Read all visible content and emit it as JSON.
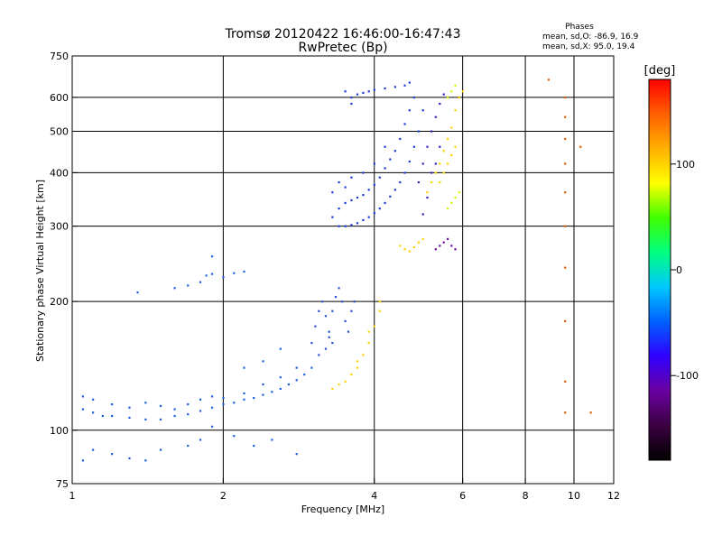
{
  "chart_data": {
    "type": "scatter",
    "title": "Tromsø 20120422 16:46:00-16:47:43",
    "subtitle": "RwPretec (Bp)",
    "xlabel": "Frequency [MHz]",
    "ylabel": "Stationary phase Virtual Height [km]",
    "x_scale": "log",
    "y_scale": "log",
    "xlim": [
      1,
      12
    ],
    "ylim": [
      75,
      750
    ],
    "x_ticks": [
      1,
      2,
      4,
      6,
      8,
      10,
      12
    ],
    "y_ticks": [
      75,
      100,
      200,
      300,
      400,
      500,
      600,
      750
    ],
    "x_gridlines": [
      2,
      4,
      6,
      8,
      10
    ],
    "y_gridlines": [
      100,
      200,
      300,
      400,
      500,
      600
    ],
    "grid": true,
    "stats": {
      "title": "Phases",
      "line1": "mean, sd,O: -86.9, 16.9",
      "line2": "mean, sd,X:  95.0, 19.4"
    },
    "colorbar": {
      "label": "[deg]",
      "range": [
        -180,
        180
      ],
      "ticks": [
        100,
        0,
        -100
      ],
      "colors": [
        "#000000",
        "#3a0040",
        "#6a00a0",
        "#3000ff",
        "#0060ff",
        "#00c8ff",
        "#00ff80",
        "#40ff00",
        "#ffff00",
        "#ffb000",
        "#ff6000",
        "#ff0000"
      ]
    },
    "series": [
      {
        "color": "#1e5fe0",
        "points": [
          [
            1.05,
            112
          ],
          [
            1.1,
            110
          ],
          [
            1.15,
            108
          ],
          [
            1.2,
            108
          ],
          [
            1.3,
            107
          ],
          [
            1.4,
            106
          ],
          [
            1.5,
            106
          ],
          [
            1.6,
            108
          ],
          [
            1.7,
            109
          ],
          [
            1.8,
            111
          ],
          [
            1.9,
            113
          ],
          [
            2.0,
            115
          ],
          [
            2.1,
            116
          ],
          [
            2.2,
            118
          ],
          [
            2.3,
            119
          ],
          [
            2.4,
            121
          ],
          [
            2.5,
            123
          ],
          [
            2.6,
            125
          ],
          [
            2.7,
            128
          ],
          [
            2.8,
            131
          ],
          [
            2.9,
            135
          ],
          [
            3.0,
            140
          ],
          [
            1.05,
            120
          ],
          [
            1.1,
            118
          ],
          [
            1.2,
            115
          ],
          [
            1.3,
            113
          ],
          [
            1.4,
            116
          ],
          [
            1.5,
            114
          ],
          [
            1.6,
            112
          ],
          [
            1.7,
            115
          ],
          [
            1.8,
            118
          ],
          [
            1.9,
            120
          ],
          [
            2.0,
            119
          ],
          [
            2.2,
            122
          ],
          [
            2.4,
            128
          ],
          [
            2.6,
            133
          ],
          [
            2.8,
            140
          ],
          [
            2.6,
            155
          ],
          [
            2.4,
            145
          ],
          [
            2.2,
            140
          ],
          [
            1.35,
            210
          ],
          [
            1.6,
            215
          ],
          [
            1.7,
            218
          ],
          [
            1.8,
            222
          ],
          [
            1.85,
            230
          ],
          [
            1.9,
            232
          ],
          [
            2.0,
            228
          ],
          [
            2.1,
            233
          ],
          [
            2.2,
            235
          ],
          [
            1.9,
            255
          ],
          [
            1.05,
            85
          ],
          [
            1.1,
            90
          ],
          [
            1.2,
            88
          ],
          [
            1.3,
            86
          ],
          [
            1.4,
            85
          ],
          [
            1.5,
            90
          ],
          [
            1.7,
            92
          ],
          [
            1.8,
            95
          ],
          [
            1.9,
            102
          ],
          [
            2.1,
            97
          ],
          [
            2.3,
            92
          ],
          [
            2.5,
            95
          ],
          [
            2.8,
            88
          ]
        ]
      },
      {
        "color": "#2850d8",
        "points": [
          [
            3.0,
            160
          ],
          [
            3.05,
            175
          ],
          [
            3.1,
            190
          ],
          [
            3.15,
            200
          ],
          [
            3.2,
            185
          ],
          [
            3.25,
            170
          ],
          [
            3.3,
            190
          ],
          [
            3.35,
            205
          ],
          [
            3.4,
            215
          ],
          [
            3.45,
            200
          ],
          [
            3.5,
            180
          ],
          [
            3.55,
            170
          ],
          [
            3.6,
            190
          ],
          [
            3.65,
            200
          ],
          [
            3.1,
            150
          ],
          [
            3.2,
            155
          ],
          [
            3.25,
            165
          ],
          [
            3.3,
            160
          ]
        ]
      },
      {
        "color": "#1a3cdc",
        "points": [
          [
            3.4,
            300
          ],
          [
            3.5,
            300
          ],
          [
            3.6,
            302
          ],
          [
            3.7,
            305
          ],
          [
            3.8,
            310
          ],
          [
            3.9,
            315
          ],
          [
            4.0,
            322
          ],
          [
            4.1,
            330
          ],
          [
            4.2,
            340
          ],
          [
            4.3,
            352
          ],
          [
            4.4,
            365
          ],
          [
            4.5,
            380
          ],
          [
            4.6,
            400
          ],
          [
            4.7,
            425
          ],
          [
            4.8,
            460
          ],
          [
            4.9,
            500
          ],
          [
            5.0,
            560
          ],
          [
            3.3,
            315
          ],
          [
            3.4,
            330
          ],
          [
            3.5,
            340
          ],
          [
            3.6,
            345
          ],
          [
            3.7,
            350
          ],
          [
            3.8,
            355
          ],
          [
            3.9,
            365
          ],
          [
            4.0,
            375
          ],
          [
            4.1,
            390
          ],
          [
            4.2,
            410
          ],
          [
            4.3,
            430
          ],
          [
            4.4,
            450
          ],
          [
            4.5,
            480
          ],
          [
            4.6,
            520
          ],
          [
            4.7,
            560
          ],
          [
            4.8,
            600
          ],
          [
            3.3,
            360
          ],
          [
            3.4,
            380
          ],
          [
            3.5,
            370
          ],
          [
            3.6,
            390
          ],
          [
            3.8,
            400
          ],
          [
            4.0,
            420
          ],
          [
            4.2,
            460
          ],
          [
            3.6,
            600
          ],
          [
            3.7,
            610
          ],
          [
            3.8,
            615
          ],
          [
            3.9,
            620
          ],
          [
            4.0,
            625
          ],
          [
            4.2,
            630
          ],
          [
            4.4,
            635
          ],
          [
            4.6,
            640
          ],
          [
            4.7,
            650
          ],
          [
            3.5,
            620
          ],
          [
            3.6,
            580
          ]
        ]
      },
      {
        "color": "#3a1fc0",
        "points": [
          [
            4.9,
            380
          ],
          [
            5.0,
            420
          ],
          [
            5.1,
            460
          ],
          [
            5.2,
            500
          ],
          [
            5.3,
            540
          ],
          [
            5.4,
            580
          ],
          [
            5.5,
            610
          ],
          [
            5.3,
            420
          ],
          [
            5.4,
            460
          ],
          [
            5.2,
            400
          ],
          [
            5.1,
            350
          ],
          [
            5.0,
            320
          ]
        ]
      },
      {
        "color": "#ffd200",
        "points": [
          [
            5.1,
            360
          ],
          [
            5.2,
            380
          ],
          [
            5.3,
            400
          ],
          [
            5.4,
            420
          ],
          [
            5.5,
            450
          ],
          [
            5.6,
            480
          ],
          [
            5.7,
            510
          ],
          [
            5.8,
            560
          ],
          [
            5.9,
            600
          ],
          [
            6.0,
            620
          ],
          [
            5.4,
            380
          ],
          [
            5.5,
            400
          ],
          [
            5.6,
            420
          ],
          [
            5.7,
            440
          ],
          [
            5.8,
            460
          ],
          [
            3.3,
            125
          ],
          [
            3.4,
            128
          ],
          [
            3.5,
            130
          ],
          [
            3.6,
            135
          ],
          [
            3.7,
            140
          ],
          [
            3.8,
            150
          ],
          [
            3.9,
            160
          ],
          [
            4.0,
            175
          ],
          [
            4.1,
            190
          ],
          [
            4.1,
            200
          ],
          [
            3.9,
            170
          ],
          [
            3.7,
            145
          ],
          [
            4.5,
            270
          ],
          [
            4.6,
            265
          ],
          [
            4.7,
            262
          ],
          [
            4.8,
            268
          ],
          [
            4.9,
            275
          ],
          [
            5.0,
            280
          ]
        ]
      },
      {
        "color": "#c8ff00",
        "points": [
          [
            5.6,
            330
          ],
          [
            5.7,
            340
          ],
          [
            5.8,
            350
          ],
          [
            5.9,
            360
          ],
          [
            5.6,
            600
          ],
          [
            5.7,
            620
          ],
          [
            5.8,
            640
          ]
        ]
      },
      {
        "color": "#6a10a0",
        "points": [
          [
            5.3,
            265
          ],
          [
            5.4,
            270
          ],
          [
            5.5,
            275
          ],
          [
            5.6,
            280
          ],
          [
            5.7,
            270
          ],
          [
            5.8,
            265
          ]
        ]
      },
      {
        "color": "#e05a00",
        "points": [
          [
            9.6,
            600
          ],
          [
            9.6,
            540
          ],
          [
            9.6,
            480
          ],
          [
            9.6,
            420
          ],
          [
            9.6,
            360
          ],
          [
            9.6,
            300
          ],
          [
            9.6,
            240
          ],
          [
            9.6,
            180
          ],
          [
            9.6,
            130
          ],
          [
            9.6,
            110
          ],
          [
            10.3,
            460
          ],
          [
            10.8,
            110
          ],
          [
            8.9,
            660
          ]
        ]
      }
    ]
  }
}
